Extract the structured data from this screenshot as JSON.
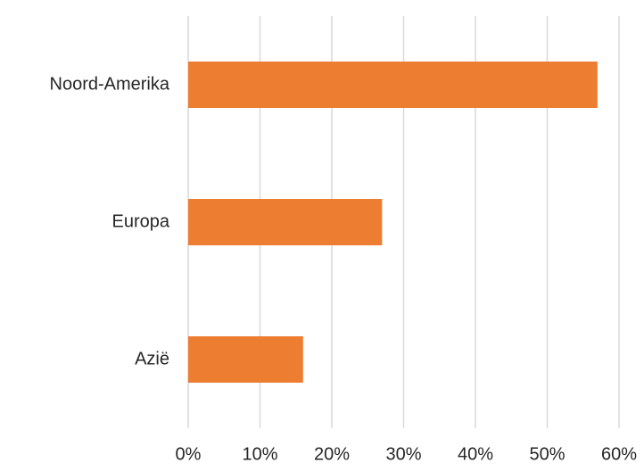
{
  "chart_data": {
    "type": "bar",
    "orientation": "horizontal",
    "categories": [
      "Noord-Amerika",
      "Europa",
      "Azië"
    ],
    "values": [
      57,
      27,
      16
    ],
    "value_unit": "%",
    "xlim": [
      0,
      60
    ],
    "x_ticks": [
      "0%",
      "10%",
      "20%",
      "30%",
      "40%",
      "50%",
      "60%"
    ],
    "grid": "vertical",
    "bar_color": "#ED7D31",
    "grid_color": "#D9D9D9",
    "text_color": "#262626",
    "legend": "none"
  }
}
